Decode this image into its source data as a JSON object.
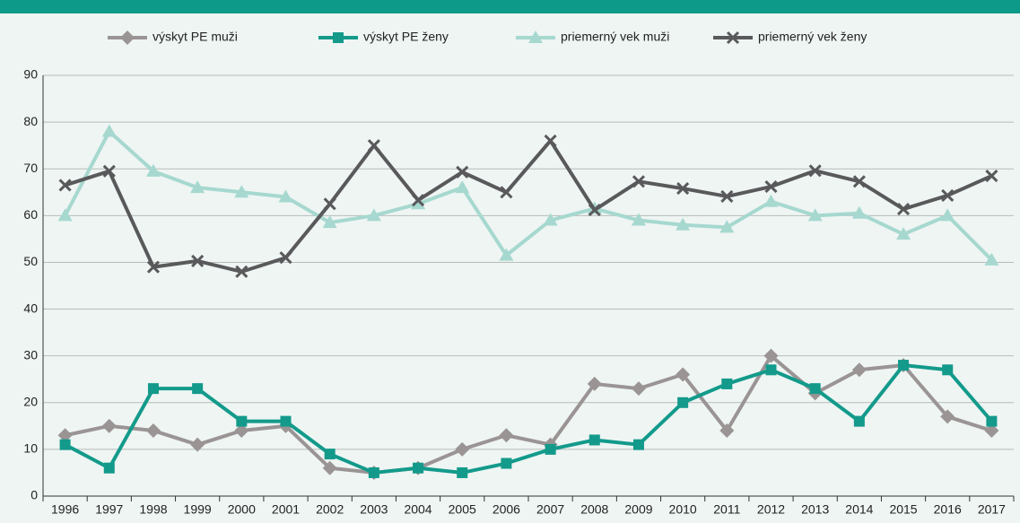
{
  "chart_data": {
    "type": "line",
    "categories": [
      "1996",
      "1997",
      "1998",
      "1999",
      "2000",
      "2001",
      "2002",
      "2003",
      "2004",
      "2005",
      "2006",
      "2007",
      "2008",
      "2009",
      "2010",
      "2011",
      "2012",
      "2013",
      "2014",
      "2015",
      "2016",
      "2017"
    ],
    "series": [
      {
        "name": "výskyt PE muži",
        "color": "#9a9494",
        "marker": "diamond",
        "values": [
          13,
          15,
          14,
          11,
          14,
          15,
          6,
          5,
          6,
          10,
          13,
          11,
          24,
          23,
          26,
          14,
          30,
          22,
          27,
          28,
          17,
          14
        ]
      },
      {
        "name": "výskyt PE ženy",
        "color": "#139a8b",
        "marker": "square",
        "values": [
          11,
          6,
          23,
          23,
          16,
          16,
          9,
          5,
          6,
          5,
          7,
          10,
          12,
          11,
          20,
          24,
          27,
          23,
          16,
          28,
          27,
          16
        ]
      },
      {
        "name": "priemerný vek muži",
        "color": "#a6d8cf",
        "marker": "triangle",
        "values": [
          60,
          78,
          69.5,
          66,
          65,
          64,
          58.5,
          60,
          62.5,
          66,
          51.5,
          59,
          61.5,
          59,
          58,
          57.5,
          63,
          60,
          60.5,
          56,
          60,
          50.5
        ]
      },
      {
        "name": "priemerný vek ženy",
        "color": "#59595b",
        "marker": "x",
        "values": [
          66.5,
          69.5,
          49,
          50.3,
          48,
          51,
          62.5,
          75,
          63.3,
          69.3,
          65,
          76,
          61.2,
          67.3,
          65.8,
          64.1,
          66.2,
          69.6,
          67.3,
          61.4,
          64.3,
          68.5
        ]
      }
    ],
    "ylim": [
      0,
      90
    ],
    "yticks": [
      0,
      10,
      20,
      30,
      40,
      50,
      60,
      70,
      80,
      90
    ],
    "grid": true
  }
}
